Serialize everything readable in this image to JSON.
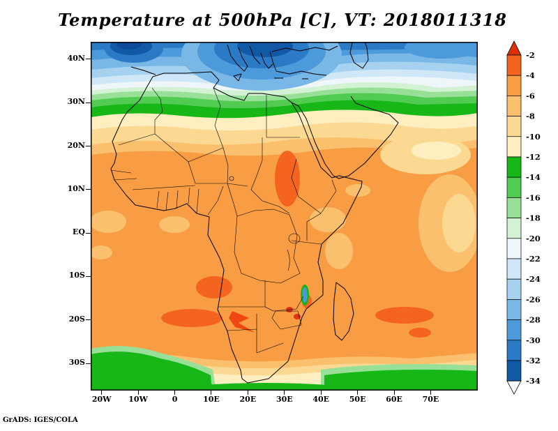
{
  "title": "Temperature at 500hPa [C], VT: 2018011318",
  "attribution": "GrADS: IGES/COLA",
  "axes": {
    "lat_labels": [
      "40N",
      "30N",
      "20N",
      "10N",
      "EQ",
      "10S",
      "20S",
      "30S"
    ],
    "lon_labels": [
      "20W",
      "10W",
      "0",
      "10E",
      "20E",
      "30E",
      "40E",
      "50E",
      "60E",
      "70E"
    ]
  },
  "colorbar": {
    "tick_labels": [
      "-2",
      "-4",
      "-6",
      "-8",
      "-10",
      "-12",
      "-14",
      "-16",
      "-18",
      "-20",
      "-22",
      "-24",
      "-26",
      "-28",
      "-30",
      "-32",
      "-34"
    ],
    "band_colors": [
      "#f4641e",
      "#f99d45",
      "#fbc06d",
      "#fcd992",
      "#feeec0",
      "#16b716",
      "#52cb52",
      "#98e098",
      "#d3f1d3",
      "#eef6fa",
      "#cfe7f6",
      "#a6d2ef",
      "#79b7e7",
      "#4c9ada",
      "#2a7ac6",
      "#1158a5"
    ],
    "arrow_top_color": "#dc2f02",
    "arrow_bottom_color": "#ffffff"
  },
  "chart_data": {
    "type": "heatmap",
    "title": "Temperature at 500hPa [C], VT: 2018011318",
    "variable": "Temperature",
    "level": "500hPa",
    "units": "C",
    "valid_time": "2018011318",
    "region": {
      "lon_range": [
        "20W",
        "70E"
      ],
      "lat_range": [
        "30S",
        "40N"
      ]
    },
    "contour_levels": [
      -34,
      -32,
      -30,
      -28,
      -26,
      -24,
      -22,
      -20,
      -18,
      -16,
      -14,
      -12,
      -10,
      -8,
      -6,
      -4,
      -2
    ],
    "legend_position": "right",
    "notes": "Shaded contour map over Africa: most of the continent between -4 and -10 C (orange shades); green band near 30N and along 35S; cold blues over the Mediterranean and Europe with coldest core (below -30 C) near 45N 10W-0 and over the Aegean/Black Sea; warm patches near -2 to -4 C over Sudan, Angola, ~20S Atlantic/Namibia and ~20S Indian Ocean."
  }
}
